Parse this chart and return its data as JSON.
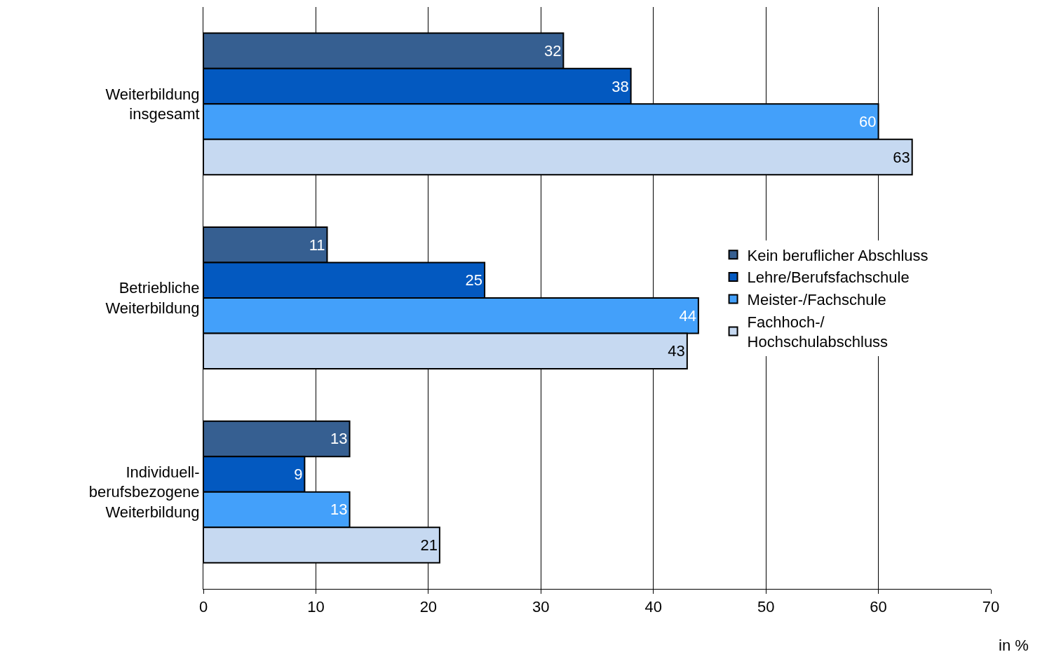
{
  "chart_data": {
    "type": "bar",
    "orientation": "horizontal",
    "xlabel": "in %",
    "categories": [
      "Weiterbildung\ninsgesamt",
      "Betriebliche\nWeiterbildung",
      "Individuell-\nberufsbezogene\nWeiterbildung"
    ],
    "series": [
      {
        "name": "Kein beruflicher Abschluss",
        "color": "#365f91",
        "values": [
          32,
          11,
          13
        ]
      },
      {
        "name": "Lehre/Berufsfachschule",
        "color": "#0359c0",
        "values": [
          38,
          25,
          9
        ]
      },
      {
        "name": "Meister-/Fachschule",
        "color": "#43a0fa",
        "values": [
          60,
          44,
          13
        ]
      },
      {
        "name": "Fachhoch-/\nHochschulabschluss",
        "color": "#c6d9f1",
        "values": [
          63,
          43,
          21
        ]
      }
    ],
    "xlim": [
      0,
      70
    ],
    "xticks": [
      0,
      10,
      20,
      30,
      40,
      50,
      60,
      70
    ],
    "grid": "x",
    "legend": "right",
    "data_labels": true
  }
}
